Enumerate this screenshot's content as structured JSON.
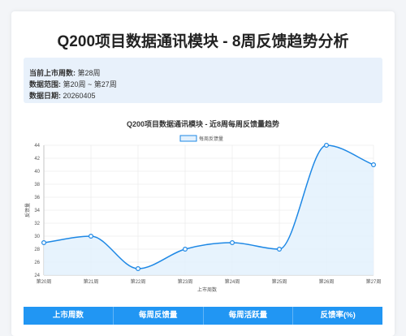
{
  "page_title": "Q200项目数据通讯模块 - 8周反馈趋势分析",
  "info": [
    {
      "label": "当前上市周数:",
      "value": "第28周"
    },
    {
      "label": "数据范围:",
      "value": "第20周 ~ 第27周"
    },
    {
      "label": "数据日期:",
      "value": "20260405"
    }
  ],
  "table": {
    "headers": [
      "上市周数",
      "每周反馈量",
      "每周活跃量",
      "反馈率(%)"
    ]
  },
  "colors": {
    "line": "#1e88e5",
    "fill": "#e3f1fd",
    "header": "#2196f3"
  },
  "chart_data": {
    "type": "line",
    "title": "Q200项目数据通讯模块 - 近8周每周反馈量趋势",
    "xlabel": "上市周数",
    "ylabel": "反馈量",
    "categories": [
      "第20周",
      "第21周",
      "第22周",
      "第23周",
      "第24周",
      "第25周",
      "第26周",
      "第27周"
    ],
    "series": [
      {
        "name": "每周反馈量",
        "values": [
          29,
          30,
          25,
          28,
          29,
          28,
          44,
          41
        ]
      }
    ],
    "ylim": [
      24,
      44
    ],
    "yticks": [
      24,
      26,
      28,
      30,
      32,
      34,
      36,
      38,
      40,
      42,
      44
    ],
    "grid": true,
    "legend": "top",
    "smooth": true,
    "area": true
  }
}
